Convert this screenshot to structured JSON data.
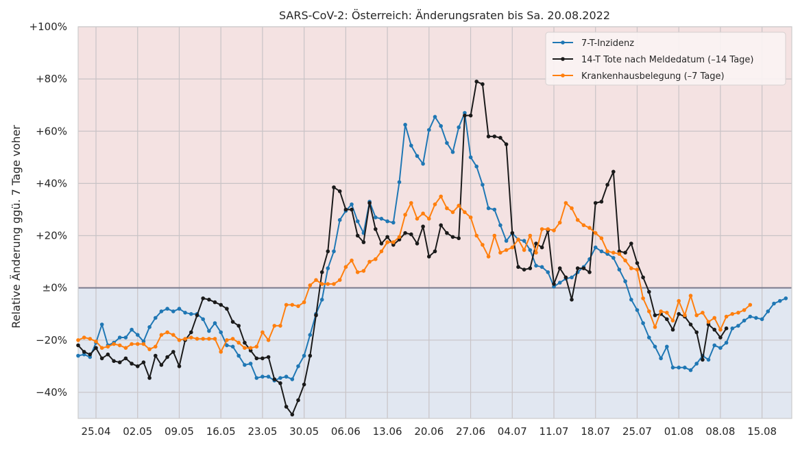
{
  "chart_data": {
    "type": "line",
    "title": "SARS-CoV-2: Österreich: Änderungsraten bis Sa. 20.08.2022",
    "ylabel": "Relative Änderung ggü. 7 Tage voher",
    "xlabel": "",
    "x_start": "2022-04-22",
    "xlim_days": [
      0,
      120
    ],
    "ylim": [
      -50,
      100
    ],
    "yticks": [
      -40,
      -20,
      0,
      20,
      40,
      60,
      80,
      100
    ],
    "ytick_labels": [
      "−40%",
      "−20%",
      "±0%",
      "+20%",
      "+40%",
      "+60%",
      "+80%",
      "+100%"
    ],
    "xtick_days": [
      3,
      10,
      17,
      24,
      31,
      38,
      45,
      52,
      59,
      66,
      73,
      80,
      87,
      94,
      101,
      108,
      115
    ],
    "xtick_labels": [
      "25.04",
      "02.05",
      "09.05",
      "16.05",
      "23.05",
      "30.05",
      "06.06",
      "13.06",
      "20.06",
      "27.06",
      "04.07",
      "11.07",
      "18.07",
      "25.07",
      "01.08",
      "08.08",
      "15.08"
    ],
    "grid": true,
    "legend_position": "top-right",
    "background": {
      "positive": "#f4e2e2",
      "negative": "#e1e7f1"
    },
    "series": [
      {
        "name": "7-T-Inzidenz",
        "color": "#1f77b4",
        "x_start_day": 0,
        "values": [
          -26,
          -25.5,
          -26.5,
          -21,
          -14,
          -22,
          -21,
          -19,
          -19,
          -16,
          -18,
          -20.5,
          -15,
          -11.5,
          -9,
          -8,
          -9,
          -8,
          -9.5,
          -10,
          -10,
          -12,
          -16.5,
          -13.5,
          -17,
          -22,
          -22.5,
          -26,
          -29.5,
          -29,
          -34.5,
          -34,
          -34,
          -35.5,
          -34.5,
          -34,
          -35,
          -30,
          -26,
          -18,
          -10,
          -4.5,
          7.5,
          14,
          26,
          29.5,
          32,
          25.5,
          21,
          33,
          27,
          26.5,
          25.5,
          25,
          40.5,
          62.5,
          54.5,
          50.5,
          47.5,
          60.5,
          65.5,
          62,
          55.5,
          52,
          61.5,
          67,
          50,
          46.5,
          39.5,
          30.5,
          30,
          24,
          18,
          21,
          18.5,
          18,
          14.5,
          8.5,
          8,
          6,
          0.5,
          2,
          3.5,
          4,
          6,
          8,
          11,
          15.5,
          14,
          13,
          11.5,
          7,
          2.5,
          -4.5,
          -8.5,
          -13.5,
          -19,
          -22.5,
          -27,
          -22.5,
          -30.5,
          -30.5,
          -30.5,
          -31.5,
          -29,
          -26,
          -27.5,
          -22,
          -23,
          -21,
          -15.5,
          -14.5,
          -12.5,
          -11,
          -11.5,
          -12,
          -9,
          -6,
          -5,
          -4
        ]
      },
      {
        "name": "14-T Tote nach Meldedatum (–14 Tage)",
        "color": "#1a1a1a",
        "x_start_day": 0,
        "values": [
          -22,
          -24.5,
          -25.5,
          -23,
          -27,
          -25.5,
          -28,
          -28.5,
          -27,
          -29,
          -30,
          -28.5,
          -34.5,
          -26,
          -29.5,
          -26.5,
          -24.5,
          -30,
          -20,
          -17,
          -10.5,
          -4,
          -4.5,
          -5.5,
          -6.5,
          -8,
          -13,
          -14.5,
          -21,
          -24,
          -27,
          -27,
          -26.5,
          -35,
          -36.5,
          -45.5,
          -48.5,
          -43,
          -37,
          -26,
          -10.5,
          6,
          14,
          38.5,
          37,
          30,
          30,
          20,
          17.5,
          32.5,
          22.5,
          17,
          19.5,
          16.5,
          18.5,
          21,
          20.5,
          17,
          23.5,
          12,
          14,
          24,
          21,
          19.5,
          19,
          66,
          66,
          79,
          78,
          58,
          58,
          57.5,
          55,
          21,
          8,
          7,
          7.5,
          17,
          15.5,
          22,
          1.5,
          7.5,
          4,
          -4.5,
          7.5,
          7.5,
          6,
          32.5,
          33,
          39.5,
          44.5,
          14,
          13.5,
          17,
          9.5,
          4,
          -1.5,
          -10.5,
          -10,
          -12,
          -16,
          -10,
          -11,
          -14,
          -17,
          -27.5,
          -14,
          -16,
          -19,
          -15.5
        ]
      },
      {
        "name": "Krankenhausbelegung (–7 Tage)",
        "color": "#ff7f0e",
        "x_start_day": 0,
        "values": [
          -20,
          -19,
          -19.5,
          -20.5,
          -23,
          -22.5,
          -21.5,
          -22,
          -23,
          -21.5,
          -21.5,
          -21.5,
          -23.5,
          -22.5,
          -18,
          -17,
          -18,
          -20,
          -19.5,
          -19,
          -19.5,
          -19.5,
          -19.5,
          -19.5,
          -24.5,
          -20,
          -19.5,
          -21,
          -23,
          -23,
          -22.5,
          -17,
          -20,
          -14.5,
          -14.5,
          -6.5,
          -6.5,
          -7,
          -5.5,
          1,
          3,
          1.5,
          1.5,
          1.5,
          3,
          8,
          10.5,
          6,
          6.5,
          10,
          11,
          14,
          17.5,
          17.5,
          19.5,
          28,
          32.5,
          26.5,
          28.5,
          26.5,
          32,
          35,
          30.5,
          29,
          31.5,
          29,
          27,
          20,
          16.5,
          12,
          20,
          13.5,
          14.5,
          15.5,
          18.5,
          14.5,
          20,
          13.5,
          22.5,
          22.5,
          22,
          25,
          32.5,
          30.5,
          26,
          24,
          23,
          21,
          19,
          14,
          13.5,
          13,
          10.5,
          7.5,
          7,
          -4,
          -9,
          -15,
          -9,
          -9.5,
          -12.5,
          -5,
          -10.5,
          -3,
          -10.5,
          -9.5,
          -13,
          -11.5,
          -16,
          -11,
          -10,
          -9.5,
          -8.5,
          -6.5
        ]
      }
    ]
  }
}
